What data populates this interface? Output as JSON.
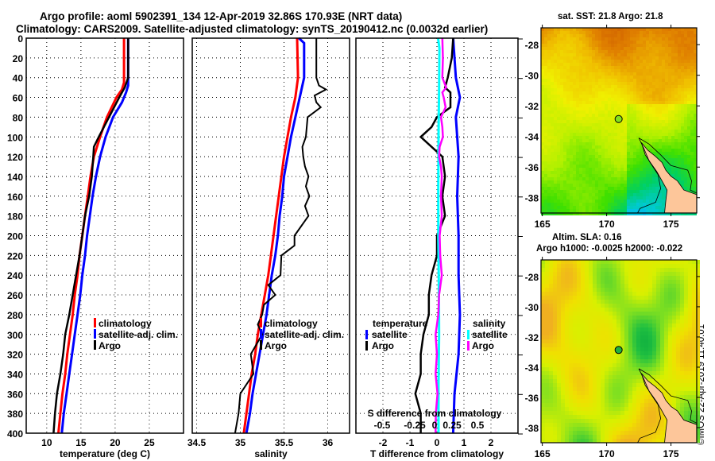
{
  "header": {
    "line1": "Argo profile: aoml 5902391_134 12-Apr-2019 32.86S 170.93E (NRT data)",
    "line2": "Climatology: CARS2009. Satellite-adjusted climatology: synTS_20190412.nc (0.0032d earlier)"
  },
  "colors": {
    "climatology": "#ff0000",
    "satellite": "#0000ff",
    "argo": "#000000",
    "salinity_satellite": "#00ffff",
    "salinity_argo": "#ff00ff",
    "land": "#fdc69a"
  },
  "chart_data": [
    {
      "type": "line",
      "name": "temperature-profile",
      "xlabel": "temperature (deg C)",
      "ylabel": "",
      "xlim": [
        7,
        30
      ],
      "ylim": [
        400,
        0
      ],
      "xticks": [
        10,
        15,
        20,
        25
      ],
      "yticks": [
        0,
        20,
        40,
        60,
        80,
        100,
        120,
        140,
        160,
        180,
        200,
        220,
        240,
        260,
        280,
        300,
        320,
        340,
        360,
        380,
        400
      ],
      "grid": true,
      "legend": {
        "placement": "lower-right",
        "entries": [
          "climatology",
          "satellite-adj. clim.",
          "Argo"
        ]
      },
      "series": [
        {
          "name": "climatology",
          "color": "#ff0000",
          "depth": [
            0,
            45,
            52,
            60,
            80,
            100,
            120,
            140,
            160,
            180,
            200,
            220,
            240,
            260,
            280,
            300,
            320,
            340,
            360,
            380,
            400
          ],
          "values": [
            21.3,
            21.3,
            21.0,
            20.2,
            18.8,
            17.8,
            16.9,
            16.4,
            16.0,
            15.6,
            15.2,
            14.8,
            14.5,
            14.1,
            13.8,
            13.4,
            13.0,
            12.7,
            12.3,
            12.0,
            11.7
          ]
        },
        {
          "name": "satellite-adj. clim.",
          "color": "#0000ff",
          "depth": [
            0,
            48,
            55,
            65,
            80,
            100,
            120,
            140,
            160,
            180,
            200,
            220,
            240,
            260,
            280,
            300,
            320,
            340,
            360,
            380,
            400
          ],
          "values": [
            21.9,
            21.9,
            21.6,
            21.0,
            19.7,
            18.6,
            17.8,
            17.2,
            16.7,
            16.3,
            15.9,
            15.6,
            15.2,
            14.9,
            14.5,
            14.1,
            13.7,
            13.3,
            12.9,
            12.5,
            12.2
          ]
        },
        {
          "name": "Argo",
          "color": "#000000",
          "depth": [
            0,
            40,
            50,
            60,
            80,
            100,
            110,
            120,
            140,
            160,
            180,
            200,
            220,
            240,
            260,
            280,
            300,
            320,
            340,
            360,
            380,
            400
          ],
          "values": [
            21.9,
            21.9,
            21.4,
            20.6,
            19.1,
            17.6,
            16.9,
            16.8,
            16.6,
            16.2,
            15.6,
            15.2,
            14.8,
            14.3,
            13.8,
            13.3,
            12.7,
            12.4,
            12.0,
            11.5,
            11.2,
            11.0
          ]
        }
      ]
    },
    {
      "type": "line",
      "name": "salinity-profile",
      "xlabel": "salinity",
      "xlim": [
        34.45,
        36.25
      ],
      "ylim": [
        400,
        0
      ],
      "xticks": [
        34.5,
        35,
        35.5,
        36
      ],
      "xtick_labels": [
        "34.5",
        "35",
        "35.5",
        "36"
      ],
      "grid": true,
      "legend": {
        "placement": "lower-right",
        "entries": [
          "climatology",
          "satellite-adj. clim.",
          "Argo"
        ]
      },
      "series": [
        {
          "name": "climatology",
          "color": "#ff0000",
          "depth": [
            0,
            40,
            60,
            80,
            100,
            120,
            140,
            160,
            180,
            200,
            220,
            240,
            260,
            280,
            300,
            320,
            340,
            360,
            380,
            400
          ],
          "values": [
            35.65,
            35.66,
            35.63,
            35.58,
            35.54,
            35.5,
            35.47,
            35.44,
            35.41,
            35.38,
            35.35,
            35.32,
            35.28,
            35.24,
            35.2,
            35.17,
            35.13,
            35.1,
            35.07,
            35.04
          ]
        },
        {
          "name": "satellite-adj. clim.",
          "color": "#0000ff",
          "depth": [
            0,
            5,
            40,
            60,
            80,
            100,
            120,
            140,
            160,
            180,
            200,
            220,
            240,
            260,
            280,
            300,
            320,
            340,
            360,
            380,
            400
          ],
          "values": [
            35.67,
            35.73,
            35.73,
            35.68,
            35.63,
            35.58,
            35.54,
            35.5,
            35.48,
            35.45,
            35.43,
            35.4,
            35.36,
            35.33,
            35.3,
            35.26,
            35.22,
            35.18,
            35.14,
            35.11,
            35.07
          ]
        },
        {
          "name": "Argo",
          "color": "#000000",
          "depth": [
            0,
            40,
            48,
            52,
            58,
            65,
            70,
            80,
            100,
            110,
            120,
            130,
            140,
            150,
            160,
            170,
            180,
            200,
            210,
            220,
            240,
            250,
            260,
            270,
            280,
            290,
            300,
            320,
            340,
            360,
            380,
            400
          ],
          "values": [
            35.87,
            35.87,
            35.9,
            35.98,
            35.85,
            35.87,
            35.92,
            35.77,
            35.75,
            35.71,
            35.72,
            35.74,
            35.78,
            35.75,
            35.79,
            35.74,
            35.78,
            35.62,
            35.62,
            35.47,
            35.46,
            35.32,
            35.4,
            35.27,
            35.25,
            35.2,
            35.25,
            35.12,
            35.15,
            35.0,
            34.98,
            34.94
          ]
        }
      ]
    },
    {
      "type": "line",
      "name": "difference-profile",
      "xlabel": "T difference from climatology",
      "secondary_xlabel": "S difference from climatology",
      "xlim": [
        -3,
        3
      ],
      "ylim": [
        400,
        0
      ],
      "xticks": [
        -2,
        -1,
        0,
        1,
        2
      ],
      "secondary_xticks": [
        "-0.5",
        "-0.25",
        "0",
        "0.25",
        "0.5"
      ],
      "grid": true,
      "legend": {
        "placement": "lower",
        "entries": [
          "temperature",
          "satellite",
          "Argo",
          "salinity",
          "satellite",
          "Argo"
        ]
      },
      "series": [
        {
          "name": "temperature satellite",
          "color": "#0000ff",
          "depth": [
            0,
            40,
            60,
            80,
            100,
            120,
            160,
            200,
            240,
            280,
            320,
            360,
            400
          ],
          "values": [
            0.6,
            0.7,
            0.85,
            0.7,
            0.75,
            0.8,
            0.75,
            0.8,
            0.8,
            0.85,
            0.8,
            0.65,
            0.6
          ]
        },
        {
          "name": "temperature Argo",
          "color": "#000000",
          "depth": [
            0,
            20,
            40,
            50,
            55,
            70,
            80,
            90,
            100,
            110,
            120,
            140,
            160,
            180,
            200,
            220,
            240,
            260,
            280,
            300,
            320,
            340,
            360,
            380,
            400
          ],
          "values": [
            0.6,
            0.55,
            0.4,
            0.3,
            0.5,
            0.5,
            0.0,
            -0.2,
            -0.6,
            -0.2,
            0.2,
            0.3,
            0.2,
            0.3,
            0.0,
            0.0,
            -0.2,
            -0.3,
            -0.3,
            -0.5,
            -0.6,
            -0.6,
            -0.8,
            -0.6,
            -0.6
          ]
        },
        {
          "name": "salinity satellite",
          "color": "#00ffff",
          "depth": [
            0,
            10,
            50,
            100,
            150,
            200,
            250,
            300,
            350,
            400
          ],
          "values": [
            0.04,
            0.09,
            0.08,
            0.06,
            0.05,
            0.05,
            0.07,
            0.08,
            0.06,
            0.06
          ]
        },
        {
          "name": "salinity Argo",
          "color": "#ff00ff",
          "depth": [
            0,
            20,
            40,
            50,
            55,
            60,
            70,
            80,
            90,
            100,
            110,
            120,
            130,
            140,
            160,
            180,
            200,
            220,
            240,
            260,
            280,
            300,
            320,
            340,
            360,
            380,
            400
          ],
          "values": [
            0.2,
            0.22,
            0.2,
            0.34,
            0.2,
            0.25,
            0.32,
            0.15,
            0.2,
            0.22,
            0.1,
            0.08,
            0.15,
            0.18,
            0.15,
            0.18,
            0.1,
            0.12,
            0.18,
            0.08,
            0.05,
            -0.05,
            0.0,
            -0.05,
            0.02,
            -0.04,
            -0.05
          ]
        }
      ]
    }
  ],
  "maps": [
    {
      "name": "sst-map",
      "title": "sat. SST: 21.8 Argo: 21.8",
      "lon_ticks": [
        165,
        170,
        175
      ],
      "lat_ticks": [
        -28,
        -30,
        -32,
        -34,
        -36,
        -38
      ],
      "lon_range": [
        164.9,
        177
      ],
      "lat_range": [
        -39,
        -26.9
      ],
      "argo_position": {
        "lat": -32.86,
        "lon": 170.93
      }
    },
    {
      "name": "sla-map",
      "title_line1": "Altim. SLA: 0.16",
      "title_line2": "Argo h1000: -0.0025 h2000: -0.022",
      "lon_ticks": [
        165,
        170,
        175
      ],
      "lat_ticks": [
        -28,
        -30,
        -32,
        -34,
        -36,
        -38
      ],
      "lon_range": [
        164.9,
        177
      ],
      "lat_range": [
        -39,
        -26.9
      ],
      "argo_position": {
        "lat": -32.86,
        "lon": 170.93
      }
    }
  ],
  "stamp": "©IMOS 22-Apr-2019 11:40:01"
}
